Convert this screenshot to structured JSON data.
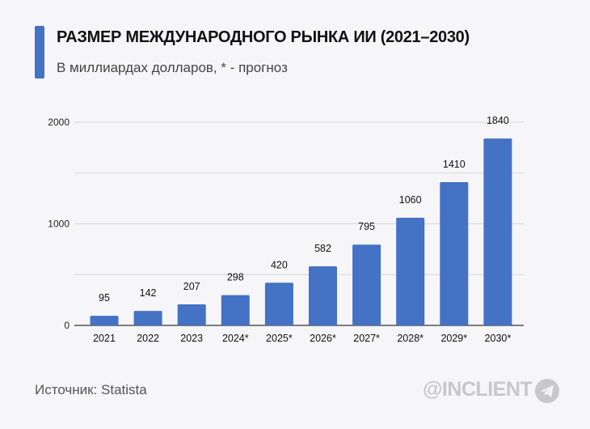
{
  "chart_data": {
    "type": "bar",
    "title": "РАЗМЕР МЕЖДУНАРОДНОГО РЫНКА ИИ (2021–2030)",
    "subtitle": "В миллиардах долларов, * - прогноз",
    "categories": [
      "2021",
      "2022",
      "2023",
      "2024*",
      "2025*",
      "2026*",
      "2027*",
      "2028*",
      "2029*",
      "2030*"
    ],
    "values": [
      95,
      142,
      207,
      298,
      420,
      582,
      795,
      1060,
      1410,
      1840
    ],
    "data_labels": [
      "95",
      "142",
      "207",
      "298",
      "420",
      "582",
      "795",
      "1060",
      "1410",
      "1840"
    ],
    "ylim": [
      0,
      2000
    ],
    "yticks": [
      "0",
      "1000",
      "2000"
    ],
    "grid_step": 500,
    "grid": true,
    "bar_color": "#4472c4",
    "xlabel": "",
    "ylabel": ""
  },
  "footer": {
    "source": "Источник: Statista",
    "brand": "@INCLIENT",
    "brand_icon": "telegram-icon"
  }
}
